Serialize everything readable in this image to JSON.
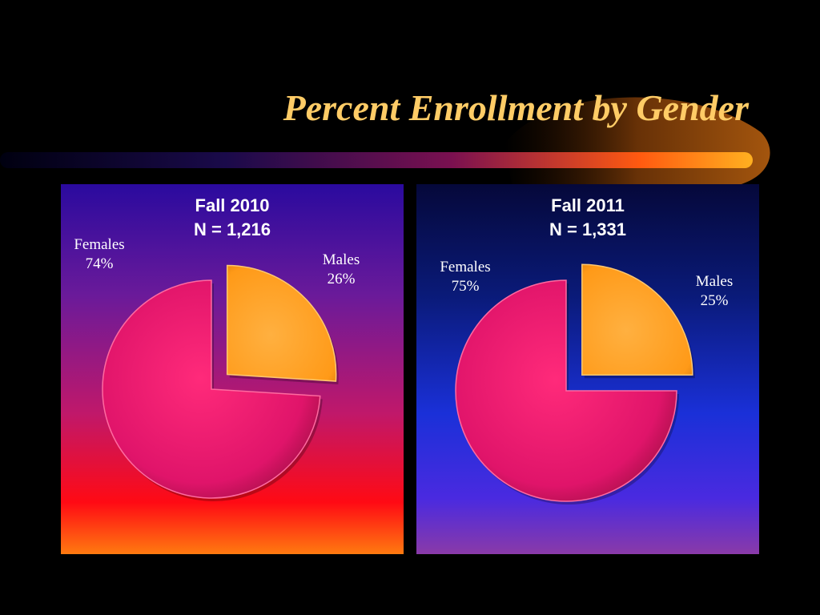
{
  "slide": {
    "title": "Percent Enrollment by Gender"
  },
  "colors": {
    "females": "#e8186a",
    "males": "#ffa020",
    "title": "#ffcc66"
  },
  "chart_data": [
    {
      "type": "pie",
      "title": "Fall 2010",
      "subtitle": "N = 1,216",
      "categories": [
        "Males",
        "Females"
      ],
      "values": [
        26,
        74
      ],
      "labels": [
        {
          "name": "Males",
          "value": "26%"
        },
        {
          "name": "Females",
          "value": "74%"
        }
      ],
      "exploded": "Males"
    },
    {
      "type": "pie",
      "title": "Fall 2011",
      "subtitle": "N = 1,331",
      "categories": [
        "Males",
        "Females"
      ],
      "values": [
        25,
        75
      ],
      "labels": [
        {
          "name": "Males",
          "value": "25%"
        },
        {
          "name": "Females",
          "value": "75%"
        }
      ],
      "exploded": "Males"
    }
  ]
}
